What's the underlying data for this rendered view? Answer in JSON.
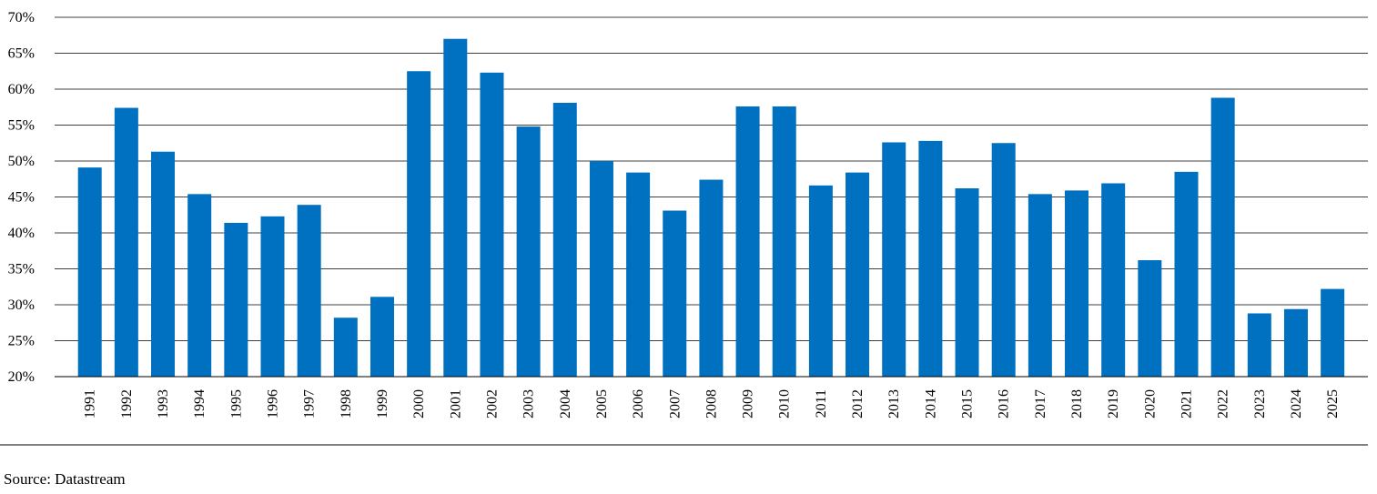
{
  "chart_data": {
    "type": "bar",
    "categories": [
      "1991",
      "1992",
      "1993",
      "1994",
      "1995",
      "1996",
      "1997",
      "1998",
      "1999",
      "2000",
      "2001",
      "2002",
      "2003",
      "2004",
      "2005",
      "2006",
      "2007",
      "2008",
      "2009",
      "2010",
      "2011",
      "2012",
      "2013",
      "2014",
      "2015",
      "2016",
      "2017",
      "2018",
      "2019",
      "2020",
      "2021",
      "2022",
      "2023",
      "2024",
      "2025"
    ],
    "values": [
      49.1,
      57.4,
      51.3,
      45.4,
      41.4,
      42.3,
      43.9,
      28.2,
      31.1,
      62.5,
      67.0,
      62.3,
      54.8,
      58.1,
      50.0,
      48.4,
      43.1,
      47.4,
      57.6,
      57.6,
      46.6,
      48.4,
      52.6,
      52.8,
      46.2,
      52.5,
      45.4,
      45.9,
      46.9,
      36.2,
      48.5,
      58.8,
      28.8,
      29.4,
      32.2
    ],
    "ylim": [
      20,
      70
    ],
    "yticks": [
      "20%",
      "25%",
      "30%",
      "35%",
      "40%",
      "45%",
      "50%",
      "55%",
      "60%",
      "65%",
      "70%"
    ],
    "ytick_values": [
      20,
      25,
      30,
      35,
      40,
      45,
      50,
      55,
      60,
      65,
      70
    ],
    "bar_color": "#0070C0",
    "grid": true,
    "title": "",
    "xlabel": "",
    "ylabel": ""
  },
  "source": "Source: Datastream"
}
